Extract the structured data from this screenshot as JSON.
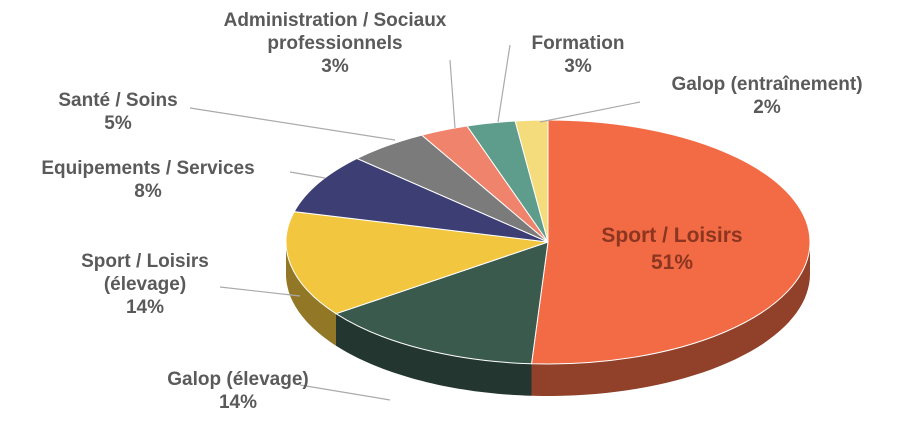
{
  "chart_data": {
    "type": "pie",
    "style": "3d",
    "categories": [
      "Sport / Loisirs",
      "Galop (élevage)",
      "Sport / Loisirs (élevage)",
      "Equipements / Services",
      "Santé / Soins",
      "Administration / Sociaux professionnels",
      "Formation",
      "Galop (entraînement)"
    ],
    "values": [
      51,
      14,
      14,
      8,
      5,
      3,
      3,
      2
    ],
    "value_labels": [
      "51%",
      "14%",
      "14%",
      "8%",
      "5%",
      "3%",
      "3%",
      "2%"
    ],
    "colors": [
      "#f26b45",
      "#3a5a4e",
      "#f3c640",
      "#3c3e74",
      "#7b7b7b",
      "#f0836b",
      "#5e9d8c",
      "#f4dc7c"
    ]
  }
}
